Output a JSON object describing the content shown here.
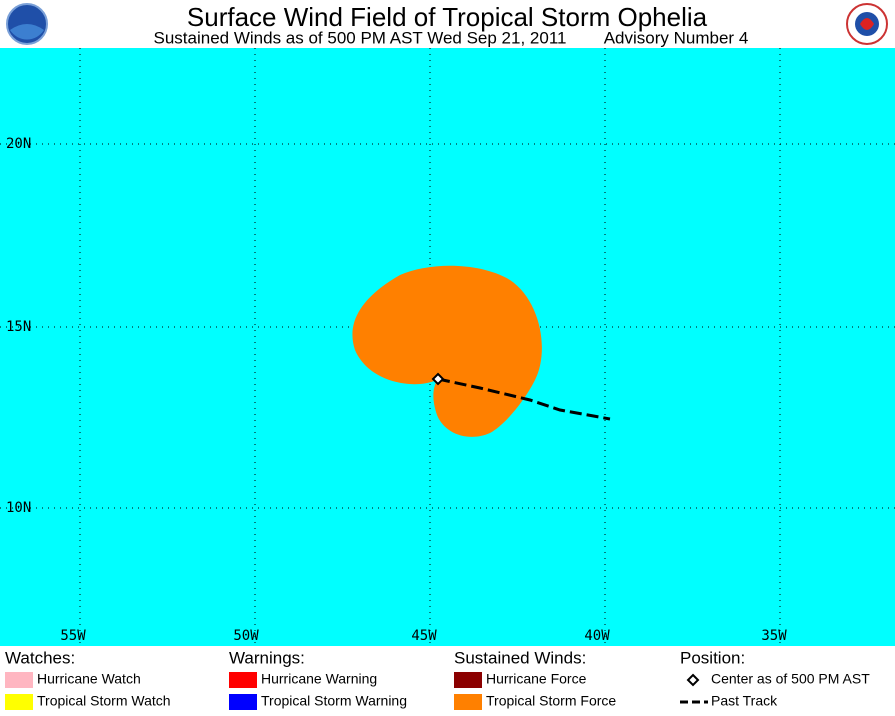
{
  "header": {
    "title": "Surface Wind Field of Tropical Storm Ophelia",
    "subtitle": "Sustained Winds as of 500 PM AST Wed Sep 21, 2011",
    "advisory": "Advisory Number 4"
  },
  "map": {
    "latitude_labels": [
      "20N",
      "15N",
      "10N"
    ],
    "longitude_labels": [
      "55W",
      "50W",
      "45W",
      "40W",
      "35W"
    ]
  },
  "legend": {
    "watches": {
      "heading": "Watches:",
      "items": [
        "Hurricane Watch",
        "Tropical Storm Watch"
      ]
    },
    "warnings": {
      "heading": "Warnings:",
      "items": [
        "Hurricane Warning",
        "Tropical Storm Warning"
      ]
    },
    "winds": {
      "heading": "Sustained Winds:",
      "items": [
        "Hurricane Force",
        "Tropical Storm Force"
      ]
    },
    "position": {
      "heading": "Position:",
      "items": [
        "Center as of 500 PM AST",
        "Past Track"
      ]
    }
  }
}
